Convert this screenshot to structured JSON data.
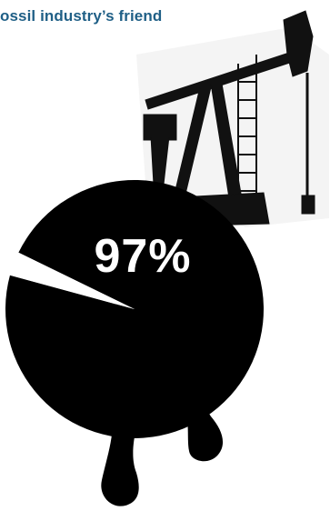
{
  "title": "ossil industry’s friend",
  "colors": {
    "title": "#1f5f86",
    "oil": "#000000",
    "background": "#ffffff",
    "label": "#ffffff"
  },
  "chart_data": {
    "type": "pie",
    "slices": [
      {
        "value": 97,
        "color": "#000000"
      },
      {
        "value": 3,
        "color": "#ffffff"
      }
    ],
    "labels": [
      "97%"
    ]
  }
}
